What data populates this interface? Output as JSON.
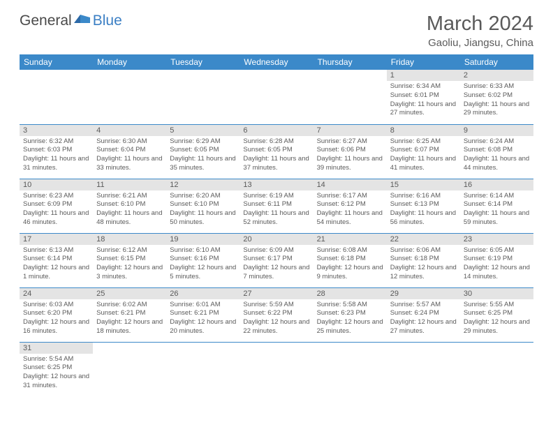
{
  "logo": {
    "part1": "General",
    "part2": "Blue"
  },
  "title": "March 2024",
  "location": "Gaoliu, Jiangsu, China",
  "colors": {
    "header_bg": "#3b89c9",
    "header_text": "#ffffff",
    "daynum_bg": "#e4e4e4",
    "text": "#5a5a5a",
    "border": "#3b89c9",
    "logo_blue": "#3b7fc4"
  },
  "weekdays": [
    "Sunday",
    "Monday",
    "Tuesday",
    "Wednesday",
    "Thursday",
    "Friday",
    "Saturday"
  ],
  "weeks": [
    [
      null,
      null,
      null,
      null,
      null,
      {
        "n": "1",
        "sr": "6:34 AM",
        "ss": "6:01 PM",
        "dl": "11 hours and 27 minutes."
      },
      {
        "n": "2",
        "sr": "6:33 AM",
        "ss": "6:02 PM",
        "dl": "11 hours and 29 minutes."
      }
    ],
    [
      {
        "n": "3",
        "sr": "6:32 AM",
        "ss": "6:03 PM",
        "dl": "11 hours and 31 minutes."
      },
      {
        "n": "4",
        "sr": "6:30 AM",
        "ss": "6:04 PM",
        "dl": "11 hours and 33 minutes."
      },
      {
        "n": "5",
        "sr": "6:29 AM",
        "ss": "6:05 PM",
        "dl": "11 hours and 35 minutes."
      },
      {
        "n": "6",
        "sr": "6:28 AM",
        "ss": "6:05 PM",
        "dl": "11 hours and 37 minutes."
      },
      {
        "n": "7",
        "sr": "6:27 AM",
        "ss": "6:06 PM",
        "dl": "11 hours and 39 minutes."
      },
      {
        "n": "8",
        "sr": "6:25 AM",
        "ss": "6:07 PM",
        "dl": "11 hours and 41 minutes."
      },
      {
        "n": "9",
        "sr": "6:24 AM",
        "ss": "6:08 PM",
        "dl": "11 hours and 44 minutes."
      }
    ],
    [
      {
        "n": "10",
        "sr": "6:23 AM",
        "ss": "6:09 PM",
        "dl": "11 hours and 46 minutes."
      },
      {
        "n": "11",
        "sr": "6:21 AM",
        "ss": "6:10 PM",
        "dl": "11 hours and 48 minutes."
      },
      {
        "n": "12",
        "sr": "6:20 AM",
        "ss": "6:10 PM",
        "dl": "11 hours and 50 minutes."
      },
      {
        "n": "13",
        "sr": "6:19 AM",
        "ss": "6:11 PM",
        "dl": "11 hours and 52 minutes."
      },
      {
        "n": "14",
        "sr": "6:17 AM",
        "ss": "6:12 PM",
        "dl": "11 hours and 54 minutes."
      },
      {
        "n": "15",
        "sr": "6:16 AM",
        "ss": "6:13 PM",
        "dl": "11 hours and 56 minutes."
      },
      {
        "n": "16",
        "sr": "6:14 AM",
        "ss": "6:14 PM",
        "dl": "11 hours and 59 minutes."
      }
    ],
    [
      {
        "n": "17",
        "sr": "6:13 AM",
        "ss": "6:14 PM",
        "dl": "12 hours and 1 minute."
      },
      {
        "n": "18",
        "sr": "6:12 AM",
        "ss": "6:15 PM",
        "dl": "12 hours and 3 minutes."
      },
      {
        "n": "19",
        "sr": "6:10 AM",
        "ss": "6:16 PM",
        "dl": "12 hours and 5 minutes."
      },
      {
        "n": "20",
        "sr": "6:09 AM",
        "ss": "6:17 PM",
        "dl": "12 hours and 7 minutes."
      },
      {
        "n": "21",
        "sr": "6:08 AM",
        "ss": "6:18 PM",
        "dl": "12 hours and 9 minutes."
      },
      {
        "n": "22",
        "sr": "6:06 AM",
        "ss": "6:18 PM",
        "dl": "12 hours and 12 minutes."
      },
      {
        "n": "23",
        "sr": "6:05 AM",
        "ss": "6:19 PM",
        "dl": "12 hours and 14 minutes."
      }
    ],
    [
      {
        "n": "24",
        "sr": "6:03 AM",
        "ss": "6:20 PM",
        "dl": "12 hours and 16 minutes."
      },
      {
        "n": "25",
        "sr": "6:02 AM",
        "ss": "6:21 PM",
        "dl": "12 hours and 18 minutes."
      },
      {
        "n": "26",
        "sr": "6:01 AM",
        "ss": "6:21 PM",
        "dl": "12 hours and 20 minutes."
      },
      {
        "n": "27",
        "sr": "5:59 AM",
        "ss": "6:22 PM",
        "dl": "12 hours and 22 minutes."
      },
      {
        "n": "28",
        "sr": "5:58 AM",
        "ss": "6:23 PM",
        "dl": "12 hours and 25 minutes."
      },
      {
        "n": "29",
        "sr": "5:57 AM",
        "ss": "6:24 PM",
        "dl": "12 hours and 27 minutes."
      },
      {
        "n": "30",
        "sr": "5:55 AM",
        "ss": "6:25 PM",
        "dl": "12 hours and 29 minutes."
      }
    ],
    [
      {
        "n": "31",
        "sr": "5:54 AM",
        "ss": "6:25 PM",
        "dl": "12 hours and 31 minutes."
      },
      null,
      null,
      null,
      null,
      null,
      null
    ]
  ]
}
